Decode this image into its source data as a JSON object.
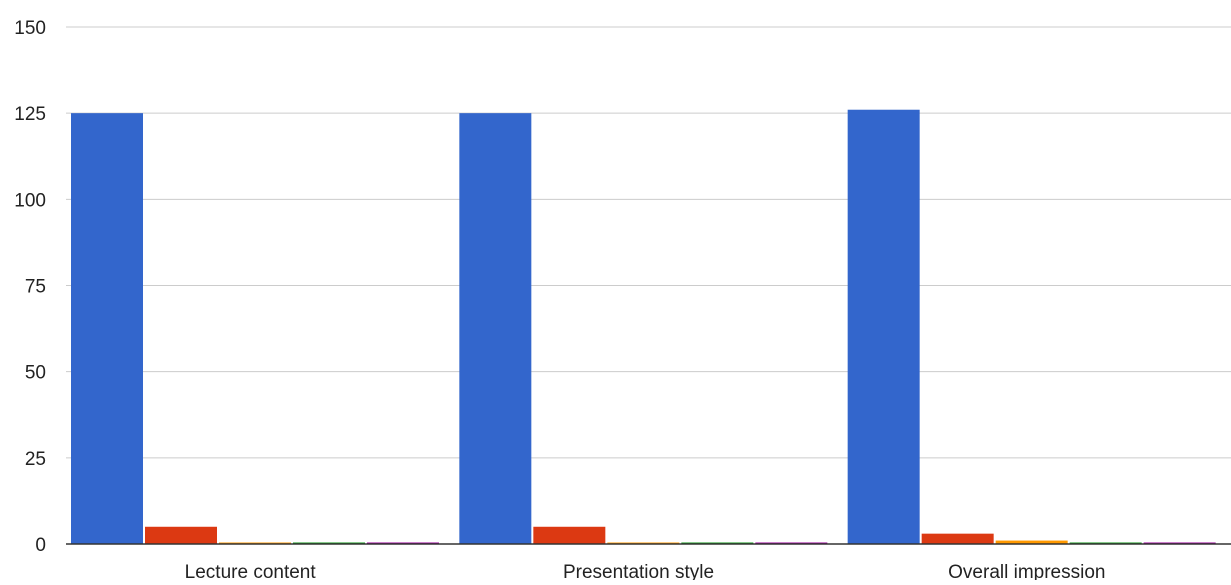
{
  "chart_data": {
    "type": "bar",
    "categories": [
      "Lecture content",
      "Presentation style",
      "Overall impression"
    ],
    "series": [
      {
        "values": [
          125,
          125,
          126
        ],
        "color": "#3366cc"
      },
      {
        "values": [
          5,
          5,
          3
        ],
        "color": "#dc3912"
      },
      {
        "values": [
          0,
          0,
          1
        ],
        "color": "#ff9900"
      },
      {
        "values": [
          0,
          0,
          0
        ],
        "color": "#109618"
      },
      {
        "values": [
          0,
          0,
          0
        ],
        "color": "#990099"
      }
    ],
    "ylim": [
      0,
      150
    ],
    "yticks": [
      0,
      25,
      50,
      75,
      100,
      125,
      150
    ],
    "title": "",
    "xlabel": "",
    "ylabel": "",
    "grid": true,
    "legend": "none"
  }
}
